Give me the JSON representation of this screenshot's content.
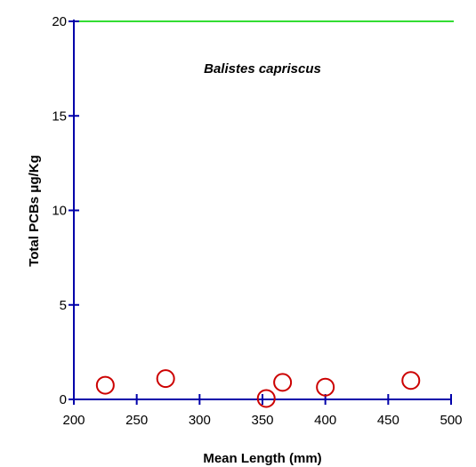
{
  "chart_data": {
    "type": "scatter",
    "title": "",
    "annotation": "Balistes capriscus",
    "xlabel": "Mean Length (mm)",
    "ylabel": "Total PCBs μg/Kg",
    "xlim": [
      200,
      500
    ],
    "ylim": [
      0,
      20
    ],
    "xticks": [
      200,
      250,
      300,
      350,
      400,
      450,
      500
    ],
    "yticks": [
      0,
      5,
      10,
      15,
      20
    ],
    "grid": false,
    "reference_line": {
      "y": 20,
      "color": "#33dd33"
    },
    "axis_color": "#0000aa",
    "marker_color": "#cc0000",
    "series": [
      {
        "x": [
          225,
          273,
          353,
          366,
          400,
          468
        ],
        "y": [
          0.75,
          1.1,
          0.05,
          0.9,
          0.65,
          1.0
        ]
      }
    ]
  }
}
